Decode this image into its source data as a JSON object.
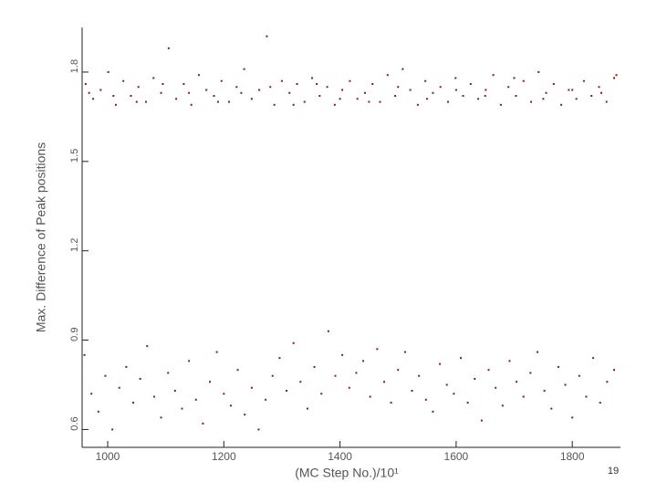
{
  "chart_data": {
    "type": "scatter",
    "x_label": "(MC Step No.)/10¹",
    "y_label": "Max. Difference of Peak positions",
    "page_number": "19",
    "color": "#8b1a1a",
    "xlim": [
      956,
      1883
    ],
    "xticks": [
      1000,
      1200,
      1400,
      1600,
      1800
    ],
    "ylim": [
      0.54,
      1.95
    ],
    "yticks": [
      0.6,
      0.9,
      1.2,
      1.5,
      1.8
    ],
    "x": [
      962,
      975,
      988,
      1001,
      1014,
      1027,
      1040,
      1053,
      1066,
      1079,
      1092,
      1105,
      1118,
      1131,
      1144,
      1157,
      1170,
      1183,
      1196,
      1209,
      1222,
      1235,
      1248,
      1261,
      1274,
      1287,
      1300,
      1313,
      1326,
      1339,
      1352,
      1365,
      1378,
      1391,
      1404,
      1417,
      1430,
      1443,
      1456,
      1469,
      1482,
      1495,
      1508,
      1521,
      1534,
      1547,
      1560,
      1573,
      1586,
      1599,
      1612,
      1625,
      1638,
      1651,
      1664,
      1677,
      1690,
      1703,
      1716,
      1729,
      1742,
      1755,
      1768,
      1781,
      1794,
      1807,
      1820,
      1833,
      1846,
      1859,
      1872,
      968,
      1010,
      1050,
      1095,
      1140,
      1190,
      1230,
      1280,
      1320,
      1360,
      1400,
      1450,
      1500,
      1550,
      1600,
      1650,
      1700,
      1750,
      1800,
      1850,
      1876,
      960,
      972,
      984,
      996,
      1008,
      1020,
      1032,
      1044,
      1056,
      1068,
      1080,
      1092,
      1104,
      1116,
      1128,
      1140,
      1152,
      1164,
      1176,
      1188,
      1200,
      1212,
      1224,
      1236,
      1248,
      1260,
      1272,
      1284,
      1296,
      1308,
      1320,
      1332,
      1344,
      1356,
      1368,
      1380,
      1392,
      1404,
      1416,
      1428,
      1440,
      1452,
      1464,
      1476,
      1488,
      1500,
      1512,
      1524,
      1536,
      1548,
      1560,
      1572,
      1584,
      1596,
      1608,
      1620,
      1632,
      1644,
      1656,
      1668,
      1680,
      1692,
      1704,
      1716,
      1728,
      1740,
      1752,
      1764,
      1776,
      1788,
      1800,
      1812,
      1824,
      1836,
      1848,
      1860,
      1872
    ],
    "values": [
      1.76,
      1.71,
      1.74,
      1.8,
      1.69,
      1.77,
      1.72,
      1.75,
      1.7,
      1.78,
      1.73,
      1.88,
      1.71,
      1.76,
      1.69,
      1.79,
      1.74,
      1.72,
      1.77,
      1.7,
      1.75,
      1.81,
      1.71,
      1.74,
      1.92,
      1.69,
      1.77,
      1.73,
      1.76,
      1.7,
      1.78,
      1.72,
      1.75,
      1.69,
      1.74,
      1.77,
      1.71,
      1.73,
      1.76,
      1.7,
      1.79,
      1.72,
      1.81,
      1.74,
      1.69,
      1.77,
      1.73,
      1.75,
      1.7,
      1.78,
      1.72,
      1.76,
      1.71,
      1.74,
      1.79,
      1.69,
      1.75,
      1.72,
      1.77,
      1.7,
      1.8,
      1.73,
      1.76,
      1.69,
      1.74,
      1.71,
      1.77,
      1.72,
      1.75,
      1.7,
      1.78,
      1.73,
      1.72,
      1.7,
      1.76,
      1.73,
      1.7,
      1.73,
      1.75,
      1.69,
      1.76,
      1.71,
      1.7,
      1.75,
      1.71,
      1.74,
      1.72,
      1.78,
      1.71,
      1.74,
      1.73,
      1.79,
      0.85,
      0.72,
      0.66,
      0.78,
      0.6,
      0.74,
      0.81,
      0.69,
      0.77,
      0.88,
      0.71,
      0.64,
      0.79,
      0.73,
      0.67,
      0.83,
      0.7,
      0.62,
      0.76,
      0.86,
      0.72,
      0.68,
      0.8,
      0.65,
      0.74,
      0.6,
      0.7,
      0.78,
      0.84,
      0.73,
      0.89,
      0.76,
      0.67,
      0.81,
      0.72,
      0.93,
      0.78,
      0.85,
      0.74,
      0.79,
      0.83,
      0.71,
      0.87,
      0.76,
      0.69,
      0.8,
      0.86,
      0.73,
      0.78,
      0.7,
      0.66,
      0.82,
      0.75,
      0.72,
      0.84,
      0.69,
      0.77,
      0.63,
      0.8,
      0.74,
      0.68,
      0.83,
      0.76,
      0.71,
      0.79,
      0.86,
      0.73,
      0.67,
      0.81,
      0.75,
      0.64,
      0.78,
      0.71,
      0.84,
      0.69,
      0.76,
      0.8
    ]
  }
}
